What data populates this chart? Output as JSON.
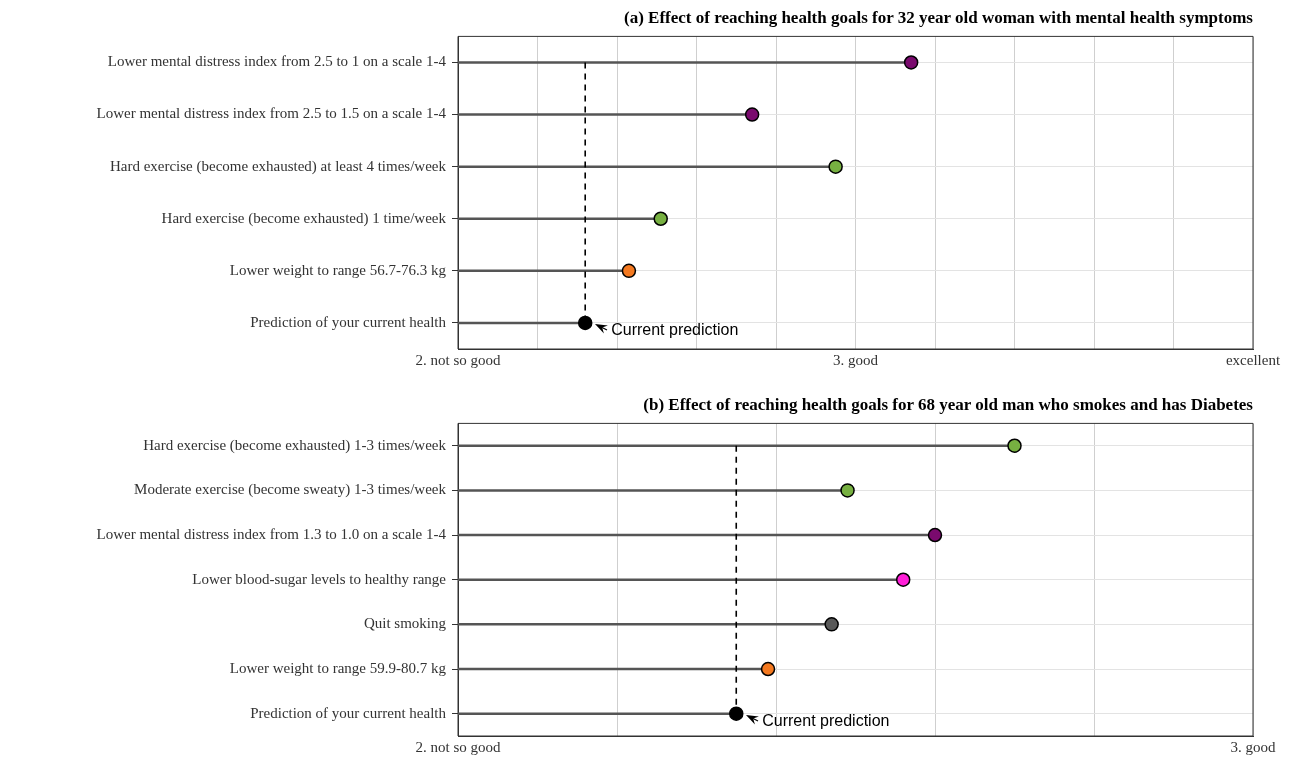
{
  "chart_data": [
    {
      "type": "lollipop",
      "orientation": "horizontal",
      "title": "(a) Effect of reaching health goals for 32 year old woman with mental health symptoms",
      "categories": [
        "Lower mental distress index from 2.5 to 1 on a scale 1-4",
        "Lower mental distress index from 2.5 to 1.5 on a scale 1-4",
        "Hard exercise (become exhausted) at least 4 times/week",
        "Hard exercise (become exhausted) 1 time/week",
        "Lower weight to range 56.7-76.3 kg",
        "Prediction of your current health"
      ],
      "values": [
        3.14,
        2.74,
        2.95,
        2.51,
        2.43,
        2.32
      ],
      "colors": [
        "#7a0a6e",
        "#7a0a6e",
        "#77b041",
        "#77b041",
        "#f47920",
        "#000000"
      ],
      "xlim": [
        2,
        4
      ],
      "xticks": [
        {
          "value": 2,
          "label": "2. not so good"
        },
        {
          "value": 2.2,
          "label": null
        },
        {
          "value": 2.4,
          "label": null
        },
        {
          "value": 2.6,
          "label": null
        },
        {
          "value": 2.8,
          "label": null
        },
        {
          "value": 3,
          "label": "3. good"
        },
        {
          "value": 3.2,
          "label": null
        },
        {
          "value": 3.4,
          "label": null
        },
        {
          "value": 3.6,
          "label": null
        },
        {
          "value": 3.8,
          "label": null
        },
        {
          "value": 4,
          "label": "excellent"
        }
      ],
      "ref_lines": [
        {
          "axis": "x",
          "value": 2.32,
          "label": null,
          "color": "#000000",
          "line_style": "dashed"
        }
      ],
      "annotations": [
        {
          "text": "Current prediction",
          "x": 2.32,
          "y": "Prediction of your current health"
        }
      ],
      "grid": true,
      "marker": "circle",
      "legend": false
    },
    {
      "type": "lollipop",
      "orientation": "horizontal",
      "title": "(b) Effect of reaching health goals for 68 year old man who smokes and has Diabetes",
      "categories": [
        "Hard exercise (become exhausted) 1-3 times/week",
        "Moderate exercise (become sweaty) 1-3 times/week",
        "Lower mental distress index from 1.3 to 1.0 on a scale 1-4",
        "Lower blood-sugar levels to healthy range",
        "Quit smoking",
        "Lower weight to range 59.9-80.7 kg",
        "Prediction of your current health"
      ],
      "values": [
        2.7,
        2.49,
        2.6,
        2.56,
        2.47,
        2.39,
        2.35
      ],
      "colors": [
        "#77b041",
        "#77b041",
        "#7a0a6e",
        "#ff1fd8",
        "#595959",
        "#f47920",
        "#000000"
      ],
      "xlim": [
        2,
        3
      ],
      "xticks": [
        {
          "value": 2,
          "label": "2. not so good"
        },
        {
          "value": 2.2,
          "label": null
        },
        {
          "value": 2.4,
          "label": null
        },
        {
          "value": 2.6,
          "label": null
        },
        {
          "value": 2.8,
          "label": null
        },
        {
          "value": 3,
          "label": "3. good"
        }
      ],
      "ref_lines": [
        {
          "axis": "x",
          "value": 2.35,
          "label": null,
          "color": "#000000",
          "line_style": "dashed"
        }
      ],
      "annotations": [
        {
          "text": "Current prediction",
          "x": 2.35,
          "y": "Prediction of your current health"
        }
      ],
      "grid": true,
      "marker": "circle",
      "legend": false
    }
  ]
}
